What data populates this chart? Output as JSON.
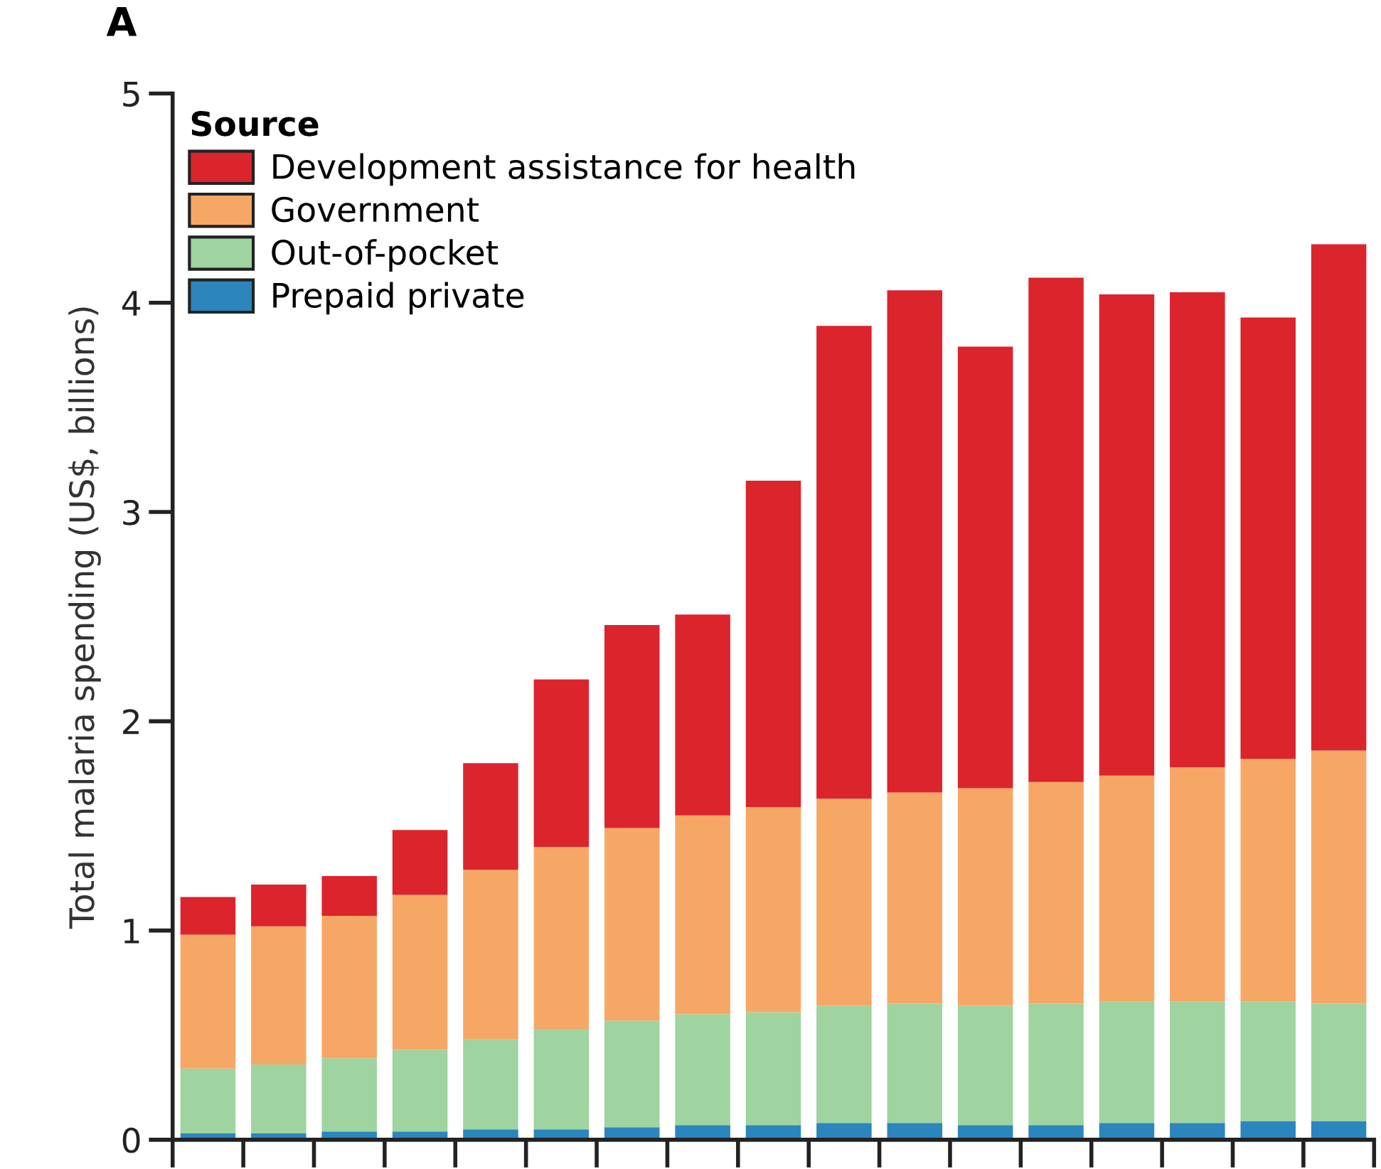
{
  "chart_data": {
    "type": "bar",
    "title": "A",
    "ylabel": "Total malaria spending (US$, billions)",
    "legend_title": "Source",
    "legend": "top left",
    "grid": false,
    "stacked": true,
    "categories": [
      null,
      null,
      null,
      null,
      null,
      null,
      null,
      null,
      null,
      null,
      null,
      null,
      null,
      null,
      null,
      null,
      null
    ],
    "ylim": [
      0,
      5
    ],
    "yticks": [
      0,
      1,
      2,
      3,
      4,
      5
    ],
    "series": [
      {
        "name": "Prepaid private",
        "color": "#2b86bd",
        "values": [
          0.03,
          0.03,
          0.04,
          0.04,
          0.05,
          0.05,
          0.06,
          0.07,
          0.07,
          0.08,
          0.08,
          0.07,
          0.07,
          0.08,
          0.08,
          0.09,
          0.09
        ]
      },
      {
        "name": "Out-of-pocket",
        "color": "#9fd3a0",
        "values": [
          0.31,
          0.33,
          0.35,
          0.39,
          0.43,
          0.48,
          0.51,
          0.53,
          0.54,
          0.56,
          0.57,
          0.57,
          0.58,
          0.58,
          0.58,
          0.57,
          0.56
        ]
      },
      {
        "name": "Government",
        "color": "#f7a765",
        "values": [
          0.64,
          0.66,
          0.68,
          0.74,
          0.81,
          0.87,
          0.92,
          0.95,
          0.98,
          0.99,
          1.01,
          1.04,
          1.06,
          1.08,
          1.12,
          1.16,
          1.21
        ]
      },
      {
        "name": "Development assistance for health",
        "color": "#dc242c",
        "values": [
          0.18,
          0.2,
          0.19,
          0.31,
          0.51,
          0.8,
          0.97,
          0.96,
          1.56,
          2.26,
          2.4,
          2.11,
          2.41,
          2.3,
          2.27,
          2.11,
          2.42
        ]
      }
    ]
  }
}
